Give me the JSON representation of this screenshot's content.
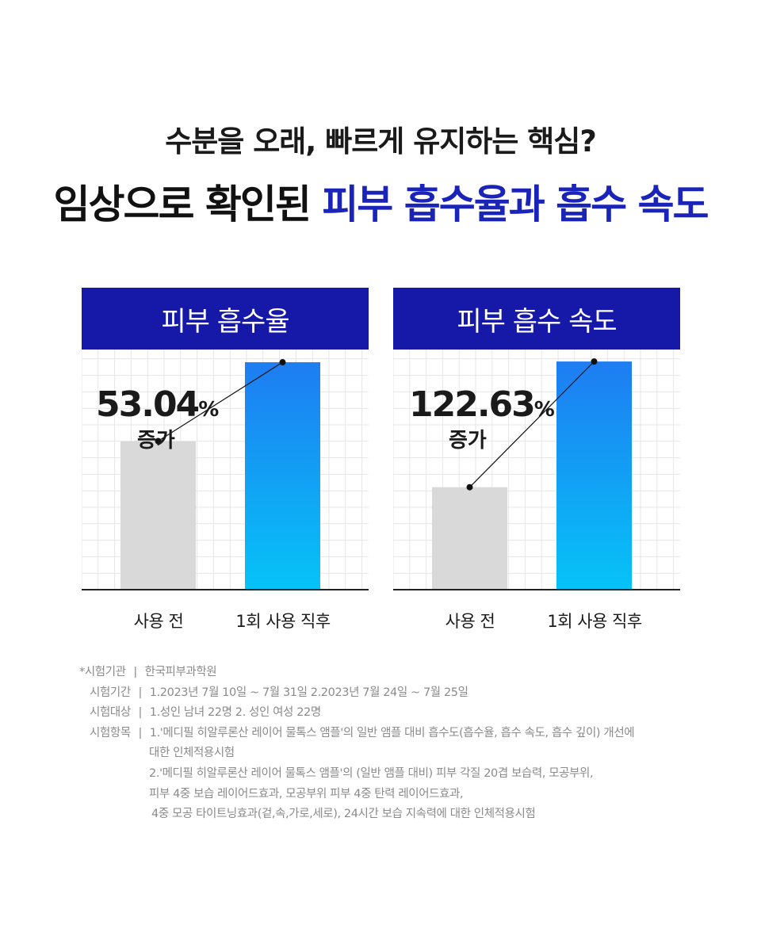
{
  "header": {
    "subtitle": "수분을 오래, 빠르게 유지하는 핵심?",
    "title_prefix": "임상으로 확인된 ",
    "title_highlight": "피부 흡수율과 흡수 속도"
  },
  "colors": {
    "header_bg": "#1619a8",
    "highlight_text": "#1a24b8",
    "bar_before": "#d9d9d9",
    "bar_after_top": "#1e7df2",
    "bar_after_bottom": "#06c3f7"
  },
  "chart_data": [
    {
      "type": "bar",
      "title": "피부 흡수율",
      "categories": [
        "사용 전",
        "1회 사용 직후"
      ],
      "values": [
        100,
        153.04
      ],
      "ylim": [
        0,
        160
      ],
      "grid": true,
      "annotation": {
        "value": "53.04",
        "unit": "%",
        "label": "증가"
      }
    },
    {
      "type": "bar",
      "title": "피부 흡수 속도",
      "categories": [
        "사용 전",
        "1회 사용 직후"
      ],
      "values": [
        100,
        222.63
      ],
      "ylim": [
        0,
        232
      ],
      "grid": true,
      "annotation": {
        "value": "122.63",
        "unit": "%",
        "label": "증가"
      }
    }
  ],
  "notes": {
    "rows": [
      {
        "label": "*시험기관",
        "sep": "|",
        "value": "한국피부과학원"
      },
      {
        "label": "시험기간",
        "sep": "|",
        "value": "1.2023년 7월 10일 ~ 7월 31일 2.2023년 7월 24일 ~ 7월 25일"
      },
      {
        "label": "시험대상",
        "sep": "|",
        "value": "1.성인 남녀 22명 2. 성인 여성 22명"
      },
      {
        "label": "시험항목",
        "sep": "|",
        "value": "1.'메디필 히알루론산 레이어 물톡스 앰플'의 일반 앰플 대비 흡수도(흡수율, 흡수 속도, 흡수 깊이) 개선에"
      }
    ],
    "continuation": [
      "대한 인체적용시험",
      "2.'메디필 히알루론산 레이어 물톡스 앰플'의 (일반 앰플 대비) 피부 각질 20겹 보습력, 모공부위,",
      "피부 4중 보습 레이어드효과, 모공부위 피부 4중 탄력 레이어드효과,",
      "4중 모공 타이트닝효과(겉,속,가로,세로), 24시간 보습 지속력에 대한 인체적용시험"
    ]
  }
}
